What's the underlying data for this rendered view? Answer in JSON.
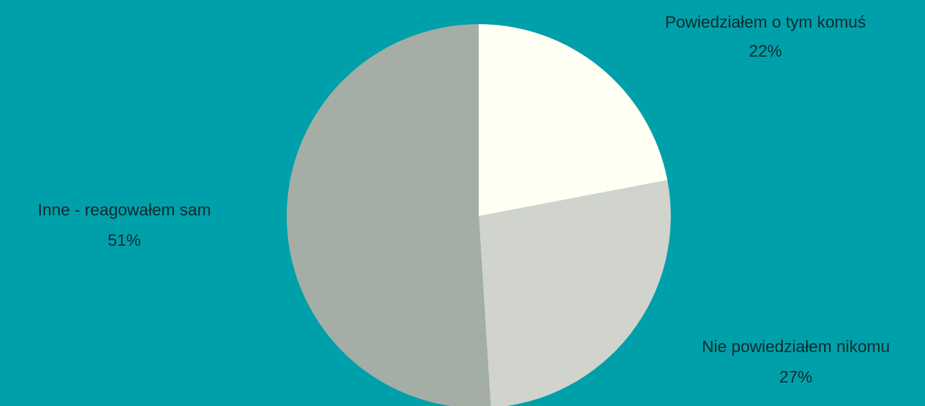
{
  "chart_data": {
    "type": "pie",
    "slices": [
      {
        "label": "Powiedziałem o tym komuś",
        "value": 22,
        "value_label": "22%",
        "color": "#FFFFF4"
      },
      {
        "label": "Nie powiedziałem nikomu",
        "value": 27,
        "value_label": "27%",
        "color": "#D0D4CD"
      },
      {
        "label": "Inne - reagowałem sam",
        "value": 51,
        "value_label": "51%",
        "color": "#A4AEA6"
      }
    ],
    "start_angle": "top",
    "direction": "clockwise",
    "background": "#00A0AA"
  }
}
